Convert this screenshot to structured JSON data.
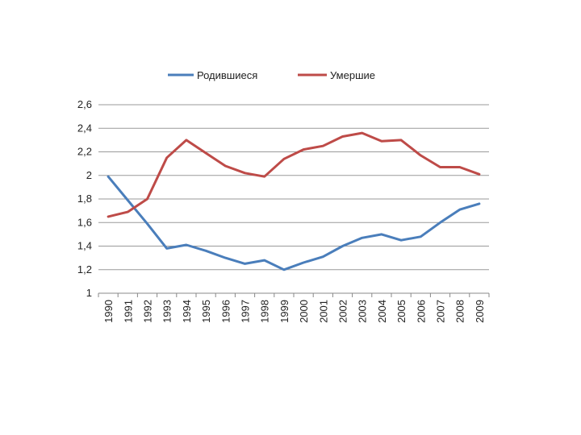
{
  "chart_data": {
    "type": "line",
    "title": "",
    "xlabel": "",
    "ylabel": "",
    "categories": [
      "1990",
      "1991",
      "1992",
      "1993",
      "1994",
      "1995",
      "1996",
      "1997",
      "1998",
      "1999",
      "2000",
      "2001",
      "2002",
      "2003",
      "2004",
      "2005",
      "2006",
      "2007",
      "2008",
      "2009"
    ],
    "series": [
      {
        "name": "Родившиеся",
        "color": "#4a7ebb",
        "values": [
          1.99,
          1.79,
          1.59,
          1.38,
          1.41,
          1.36,
          1.3,
          1.25,
          1.28,
          1.2,
          1.26,
          1.31,
          1.4,
          1.47,
          1.5,
          1.45,
          1.48,
          1.6,
          1.71,
          1.76
        ]
      },
      {
        "name": "Умершие",
        "color": "#be4b48",
        "values": [
          1.65,
          1.69,
          1.8,
          2.15,
          2.3,
          2.19,
          2.08,
          2.02,
          1.99,
          2.14,
          2.22,
          2.25,
          2.33,
          2.36,
          2.29,
          2.3,
          2.17,
          2.07,
          2.07,
          2.01
        ]
      }
    ],
    "ylim": [
      1,
      2.6
    ],
    "yticks": [
      "1",
      "1,2",
      "1,4",
      "1,6",
      "1,8",
      "2",
      "2,2",
      "2,4",
      "2,6"
    ],
    "ytick_values": [
      1,
      1.2,
      1.4,
      1.6,
      1.8,
      2.0,
      2.2,
      2.4,
      2.6
    ],
    "grid": true,
    "legend_position": "top"
  }
}
